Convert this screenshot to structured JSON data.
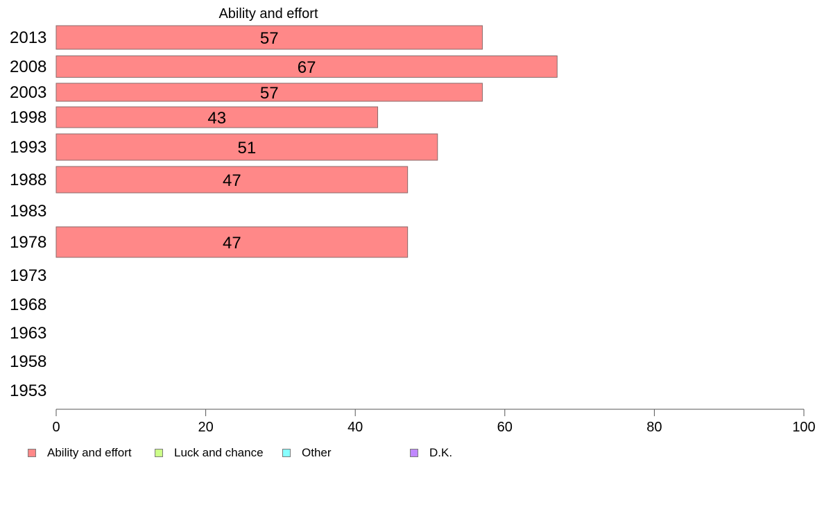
{
  "chart_data": {
    "type": "bar",
    "orientation": "horizontal",
    "title": "",
    "xlabel": "",
    "ylabel": "",
    "xlim": [
      0,
      100
    ],
    "x_ticks": [
      0,
      20,
      40,
      60,
      80,
      100
    ],
    "categories": [
      "2013",
      "2008",
      "2003",
      "1998",
      "1993",
      "1988",
      "1983",
      "1978",
      "1973",
      "1968",
      "1963",
      "1958",
      "1953"
    ],
    "series": [
      {
        "name": "Ability and effort",
        "color": "#ff8888",
        "values": [
          57,
          67,
          57,
          43,
          51,
          47,
          null,
          47,
          null,
          null,
          null,
          null,
          null
        ],
        "value_labels": [
          "57",
          "67",
          "57",
          "43",
          "51",
          "47",
          "",
          "47",
          "",
          "",
          "",
          "",
          ""
        ]
      },
      {
        "name": "Luck and chance",
        "color": "#ccff88",
        "values": [
          null,
          null,
          null,
          null,
          null,
          null,
          null,
          null,
          null,
          null,
          null,
          null,
          null
        ]
      },
      {
        "name": "Other",
        "color": "#88ffff",
        "values": [
          null,
          null,
          null,
          null,
          null,
          null,
          null,
          null,
          null,
          null,
          null,
          null,
          null
        ]
      },
      {
        "name": "D.K.",
        "color": "#c088ff",
        "values": [
          null,
          null,
          null,
          null,
          null,
          null,
          null,
          null,
          null,
          null,
          null,
          null,
          null
        ]
      }
    ],
    "segment_header": "Ability and effort",
    "grid": false,
    "legend_position": "bottom"
  }
}
